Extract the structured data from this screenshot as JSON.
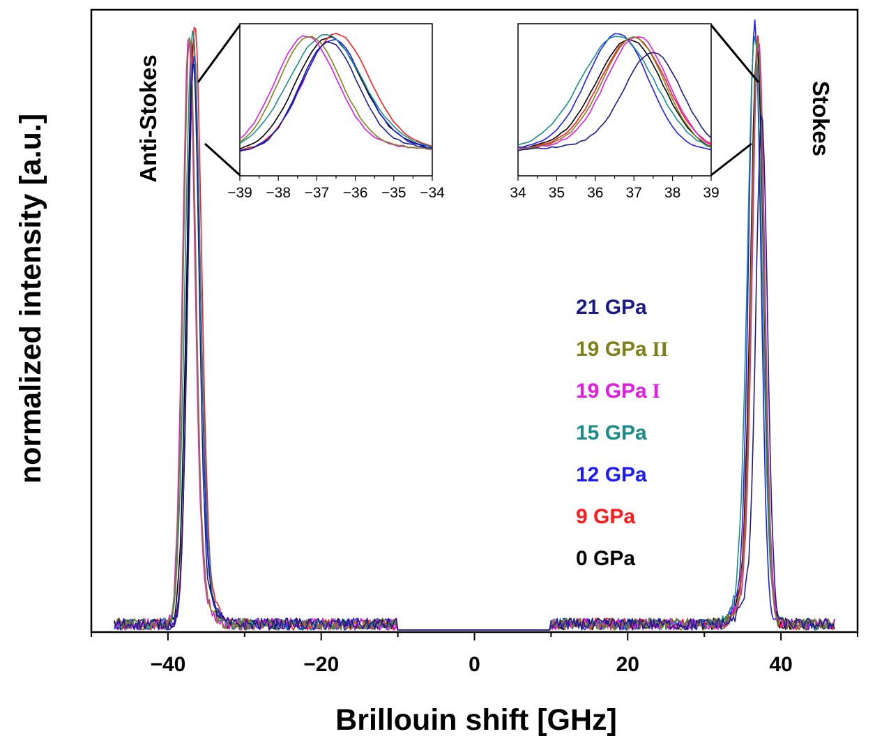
{
  "chart_data": {
    "type": "line",
    "title": "",
    "xlabel": "Brillouin shift [GHz]",
    "ylabel": "normalized intensity [a.u.]",
    "xlim": [
      -50,
      50
    ],
    "ylim": [
      0,
      1.05
    ],
    "xticks": [
      -40,
      -20,
      0,
      20,
      40
    ],
    "xtick_labels": [
      "−40",
      "−20",
      "0",
      "20",
      "40"
    ],
    "yticks_labeled": false,
    "grid": false,
    "legend_position": "center-right",
    "annotations": {
      "anti_stokes": "Anti-Stokes",
      "stokes": "Stokes"
    },
    "series": [
      {
        "name": "21 GPa",
        "label_main": "21 GPa",
        "label_suffix": "",
        "color": "#1a1a8c",
        "peak_left": -36.7,
        "peak_right": 37.5,
        "height_left": 0.93,
        "height_right": 0.84,
        "width": 0.75
      },
      {
        "name": "19 GPa II",
        "label_main": "19 GPa",
        "label_suffix": " II",
        "color": "#808019",
        "peak_left": -37.2,
        "peak_right": 37.0,
        "height_left": 0.98,
        "height_right": 0.97,
        "width": 0.8
      },
      {
        "name": "19 GPa I",
        "label_main": "19 GPa",
        "label_suffix": " I",
        "color": "#e619e6",
        "peak_left": -37.3,
        "peak_right": 37.1,
        "height_left": 0.98,
        "height_right": 0.98,
        "width": 0.8
      },
      {
        "name": "15 GPa",
        "label_main": "15 GPa",
        "label_suffix": "",
        "color": "#1a8c8c",
        "peak_left": -36.8,
        "peak_right": 36.6,
        "height_left": 0.99,
        "height_right": 0.98,
        "width": 0.95
      },
      {
        "name": "12 GPa",
        "label_main": "12 GPa",
        "label_suffix": "",
        "color": "#1a1aff",
        "peak_left": -36.6,
        "peak_right": 36.6,
        "height_left": 0.95,
        "height_right": 1.0,
        "width": 0.8
      },
      {
        "name": "9 GPa",
        "label_main": "9 GPa",
        "label_suffix": "",
        "color": "#ff1a1a",
        "peak_left": -36.5,
        "peak_right": 37.0,
        "height_left": 1.0,
        "height_right": 0.97,
        "width": 0.85
      },
      {
        "name": "0 GPa",
        "label_main": "0 GPa",
        "label_suffix": "",
        "color": "#000000",
        "peak_left": -36.7,
        "peak_right": 36.9,
        "height_left": 0.97,
        "height_right": 0.95,
        "width": 0.85
      }
    ],
    "insets": [
      {
        "name": "anti-stokes-inset",
        "xlim": [
          -39,
          -34
        ],
        "ylim": [
          0,
          1.05
        ],
        "xticks": [
          -39,
          -38,
          -37,
          -36,
          -35,
          -34
        ],
        "xtick_labels": [
          "−39",
          "−38",
          "−37",
          "−36",
          "−35",
          "−34"
        ]
      },
      {
        "name": "stokes-inset",
        "xlim": [
          34,
          39
        ],
        "ylim": [
          0,
          1.05
        ],
        "xticks": [
          34,
          35,
          36,
          37,
          38,
          39
        ],
        "xtick_labels": [
          "34",
          "35",
          "36",
          "37",
          "38",
          "39"
        ]
      }
    ]
  }
}
